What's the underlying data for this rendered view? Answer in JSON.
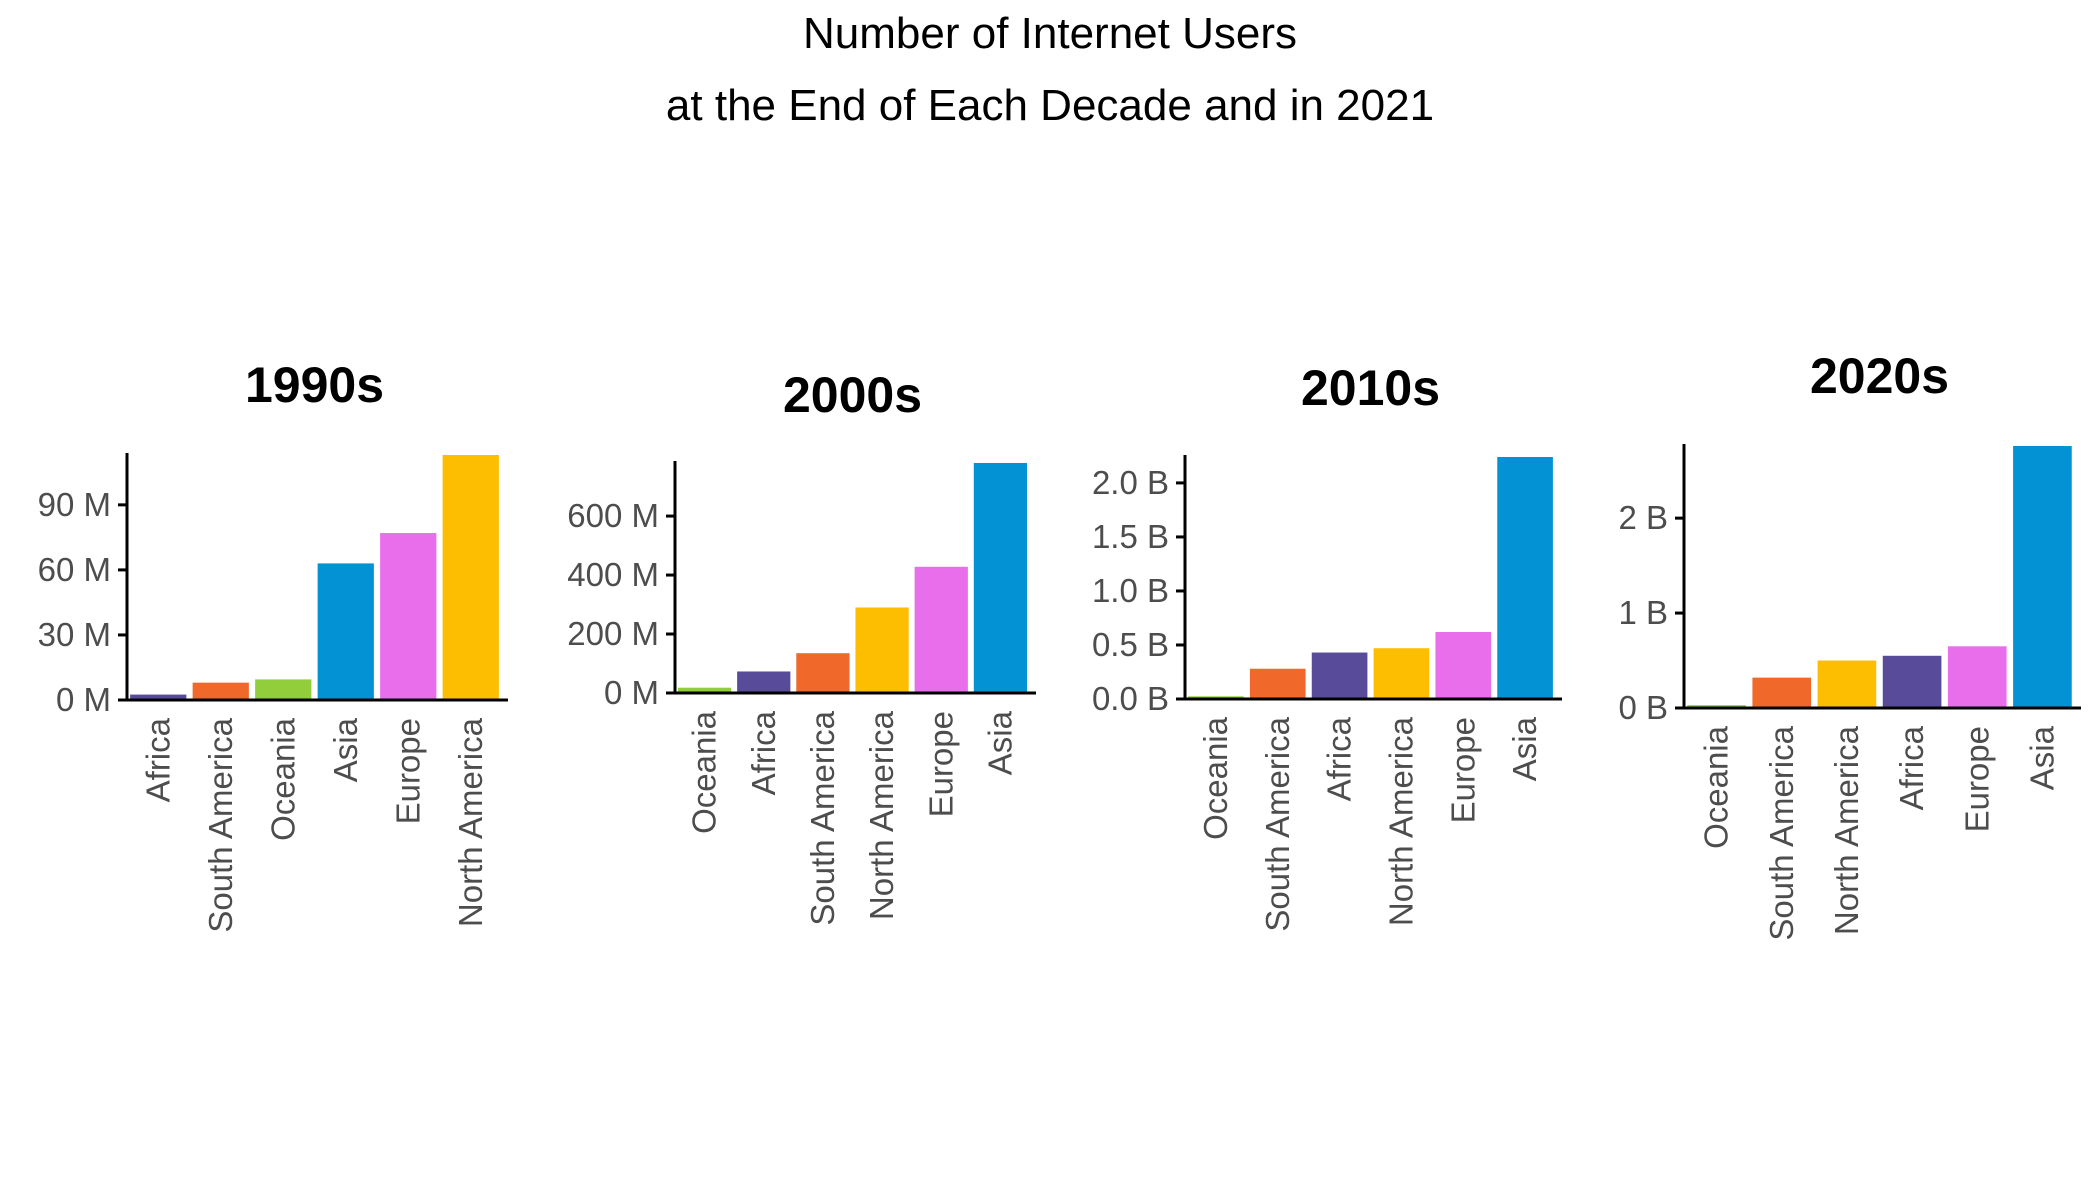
{
  "title_line1": "Number of Internet Users",
  "title_line2": "at the End of Each Decade and in 2021",
  "colors": {
    "Africa": "#574B9A",
    "South America": "#F0692A",
    "Oceania": "#92CD3C",
    "Asia": "#0392D3",
    "Europe": "#E86EEC",
    "North America": "#FDBD00",
    "axis": "#000000",
    "tick_label": "#4D4D4D"
  },
  "chart_data": [
    {
      "type": "bar",
      "title": "1990s",
      "categories": [
        "Africa",
        "South America",
        "Oceania",
        "Asia",
        "Europe",
        "North America"
      ],
      "values": [
        2.5,
        8,
        9.5,
        63,
        77,
        113
      ],
      "yunit": "M",
      "ylim": [
        0,
        113
      ],
      "yticks": [
        0,
        30,
        60,
        90
      ],
      "ytick_labels": [
        "0 M",
        "30 M",
        "60 M",
        "90 M"
      ],
      "grid": false
    },
    {
      "type": "bar",
      "title": "2000s",
      "categories": [
        "Oceania",
        "Africa",
        "South America",
        "North America",
        "Europe",
        "Asia"
      ],
      "values": [
        18,
        73,
        135,
        290,
        428,
        780
      ],
      "yunit": "M",
      "ylim": [
        0,
        780
      ],
      "yticks": [
        0,
        200,
        400,
        600
      ],
      "ytick_labels": [
        "0 M",
        "200 M",
        "400 M",
        "600 M"
      ],
      "grid": false
    },
    {
      "type": "bar",
      "title": "2010s",
      "categories": [
        "Oceania",
        "South America",
        "Africa",
        "North America",
        "Europe",
        "Asia"
      ],
      "values": [
        0.025,
        0.28,
        0.43,
        0.47,
        0.62,
        2.24
      ],
      "yunit": "B",
      "ylim": [
        0,
        2.24
      ],
      "yticks": [
        0,
        0.5,
        1.0,
        1.5,
        2.0
      ],
      "ytick_labels": [
        "0.0 B",
        "0.5 B",
        "1.0 B",
        "1.5 B",
        "2.0 B"
      ],
      "grid": false
    },
    {
      "type": "bar",
      "title": "2020s",
      "categories": [
        "Oceania",
        "South America",
        "North America",
        "Africa",
        "Europe",
        "Asia"
      ],
      "values": [
        0.03,
        0.32,
        0.5,
        0.55,
        0.65,
        2.76
      ],
      "yunit": "B",
      "ylim": [
        0,
        2.76
      ],
      "yticks": [
        0,
        1,
        2
      ],
      "ytick_labels": [
        "0 B",
        "1 B",
        "2 B"
      ],
      "grid": false
    }
  ]
}
